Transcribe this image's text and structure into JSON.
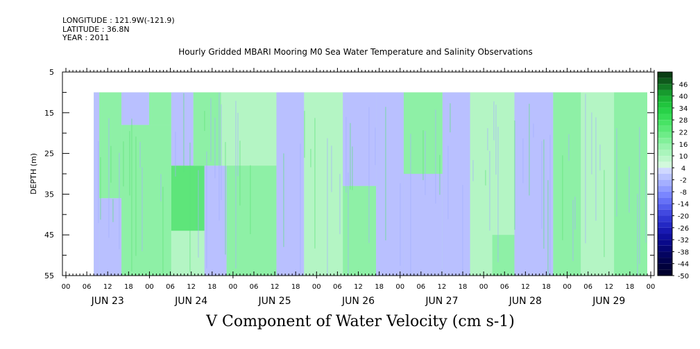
{
  "header": {
    "longitude": "LONGITUDE : 121.9W(-121.9)",
    "latitude": "LATITUDE : 36.8N",
    "year": "YEAR : 2011"
  },
  "chart_data": {
    "type": "heatmap",
    "title": "Hourly Gridded MBARI Mooring M0 Sea Water Temperature and Salinity Observations",
    "xlabel": "V Component of Water Velocity (cm s-1)",
    "ylabel": "DEPTH (m)",
    "ylim": [
      55,
      5
    ],
    "y_ticks": [
      5,
      15,
      25,
      35,
      45,
      55
    ],
    "x_hour_ticks": [
      "00",
      "06",
      "12",
      "18",
      "00",
      "06",
      "12",
      "18",
      "00",
      "06",
      "12",
      "18",
      "00",
      "06",
      "12",
      "18",
      "00",
      "06",
      "12",
      "18",
      "00",
      "06",
      "12",
      "18",
      "00",
      "06",
      "12",
      "18",
      "00"
    ],
    "x_day_labels": [
      "JUN 23",
      "JUN 24",
      "JUN 25",
      "JUN 26",
      "JUN 27",
      "JUN 28",
      "JUN 29"
    ],
    "data_start_hour": 8,
    "data_top_depth": 10,
    "colorbar_labels": [
      "46",
      "40",
      "34",
      "28",
      "22",
      "16",
      "10",
      "4",
      "-2",
      "-8",
      "-14",
      "-20",
      "-26",
      "-32",
      "-38",
      "-44",
      "-50"
    ],
    "colorbar_range": [
      -50,
      52
    ],
    "colorbar_levels": [
      52,
      49,
      46,
      43,
      40,
      37,
      34,
      31,
      28,
      25,
      22,
      19,
      16,
      13,
      10,
      7,
      4,
      1,
      -2,
      -5,
      -8,
      -11,
      -14,
      -17,
      -20,
      -23,
      -26,
      -29,
      -32,
      -35,
      -38,
      -41,
      -44,
      -47,
      -50
    ],
    "colorbar_colors": [
      "#0a3d14",
      "#0f5a1c",
      "#137a25",
      "#179b2e",
      "#1cb436",
      "#21c53e",
      "#28d248",
      "#36dc55",
      "#48e365",
      "#5ae876",
      "#6eec88",
      "#82f09a",
      "#98f3ad",
      "#aaf5bc",
      "#bdf7cb",
      "#d2f9dc",
      "#cfd8ff",
      "#b9c3ff",
      "#a4afff",
      "#8f9bff",
      "#7a86ff",
      "#6671f7",
      "#535ded",
      "#4249e0",
      "#3137d3",
      "#2328c4",
      "#1819b2",
      "#0f0f9e",
      "#09098a",
      "#060675",
      "#040460",
      "#02024d",
      "#01013c",
      "#00002e"
    ],
    "field_colors": {
      "light_green": "#b4f5c4",
      "green": "#8ef0a6",
      "dark_green": "#5ee57a",
      "lavender": "#b9c0ff",
      "lavender_dark": "#a5b0ff"
    },
    "field_pattern": [
      {
        "x0": 0.0,
        "x1": 0.01,
        "y0": 10,
        "y1": 55,
        "c": "lavender"
      },
      {
        "x0": 0.01,
        "x1": 0.05,
        "y0": 10,
        "y1": 36,
        "c": "green"
      },
      {
        "x0": 0.01,
        "x1": 0.05,
        "y0": 36,
        "y1": 55,
        "c": "lavender"
      },
      {
        "x0": 0.05,
        "x1": 0.1,
        "y0": 10,
        "y1": 18,
        "c": "lavender"
      },
      {
        "x0": 0.05,
        "x1": 0.14,
        "y0": 18,
        "y1": 55,
        "c": "green"
      },
      {
        "x0": 0.1,
        "x1": 0.14,
        "y0": 10,
        "y1": 18,
        "c": "green"
      },
      {
        "x0": 0.14,
        "x1": 0.18,
        "y0": 10,
        "y1": 28,
        "c": "lavender"
      },
      {
        "x0": 0.14,
        "x1": 0.2,
        "y0": 28,
        "y1": 44,
        "c": "dark_green"
      },
      {
        "x0": 0.14,
        "x1": 0.2,
        "y0": 44,
        "y1": 55,
        "c": "light_green"
      },
      {
        "x0": 0.18,
        "x1": 0.23,
        "y0": 10,
        "y1": 28,
        "c": "green"
      },
      {
        "x0": 0.2,
        "x1": 0.24,
        "y0": 28,
        "y1": 55,
        "c": "lavender"
      },
      {
        "x0": 0.23,
        "x1": 0.33,
        "y0": 10,
        "y1": 28,
        "c": "light_green"
      },
      {
        "x0": 0.24,
        "x1": 0.33,
        "y0": 28,
        "y1": 55,
        "c": "green"
      },
      {
        "x0": 0.33,
        "x1": 0.38,
        "y0": 10,
        "y1": 55,
        "c": "lavender"
      },
      {
        "x0": 0.38,
        "x1": 0.45,
        "y0": 10,
        "y1": 55,
        "c": "light_green"
      },
      {
        "x0": 0.45,
        "x1": 0.51,
        "y0": 10,
        "y1": 33,
        "c": "lavender"
      },
      {
        "x0": 0.45,
        "x1": 0.51,
        "y0": 33,
        "y1": 55,
        "c": "green"
      },
      {
        "x0": 0.51,
        "x1": 0.56,
        "y0": 10,
        "y1": 55,
        "c": "lavender"
      },
      {
        "x0": 0.56,
        "x1": 0.63,
        "y0": 10,
        "y1": 30,
        "c": "green"
      },
      {
        "x0": 0.56,
        "x1": 0.63,
        "y0": 30,
        "y1": 55,
        "c": "lavender"
      },
      {
        "x0": 0.63,
        "x1": 0.68,
        "y0": 10,
        "y1": 55,
        "c": "lavender"
      },
      {
        "x0": 0.68,
        "x1": 0.76,
        "y0": 10,
        "y1": 55,
        "c": "light_green"
      },
      {
        "x0": 0.72,
        "x1": 0.76,
        "y0": 45,
        "y1": 55,
        "c": "green"
      },
      {
        "x0": 0.76,
        "x1": 0.83,
        "y0": 10,
        "y1": 55,
        "c": "lavender"
      },
      {
        "x0": 0.83,
        "x1": 0.88,
        "y0": 10,
        "y1": 55,
        "c": "green"
      },
      {
        "x0": 0.88,
        "x1": 0.94,
        "y0": 10,
        "y1": 55,
        "c": "light_green"
      },
      {
        "x0": 0.94,
        "x1": 1.0,
        "y0": 10,
        "y1": 55,
        "c": "green"
      }
    ]
  }
}
